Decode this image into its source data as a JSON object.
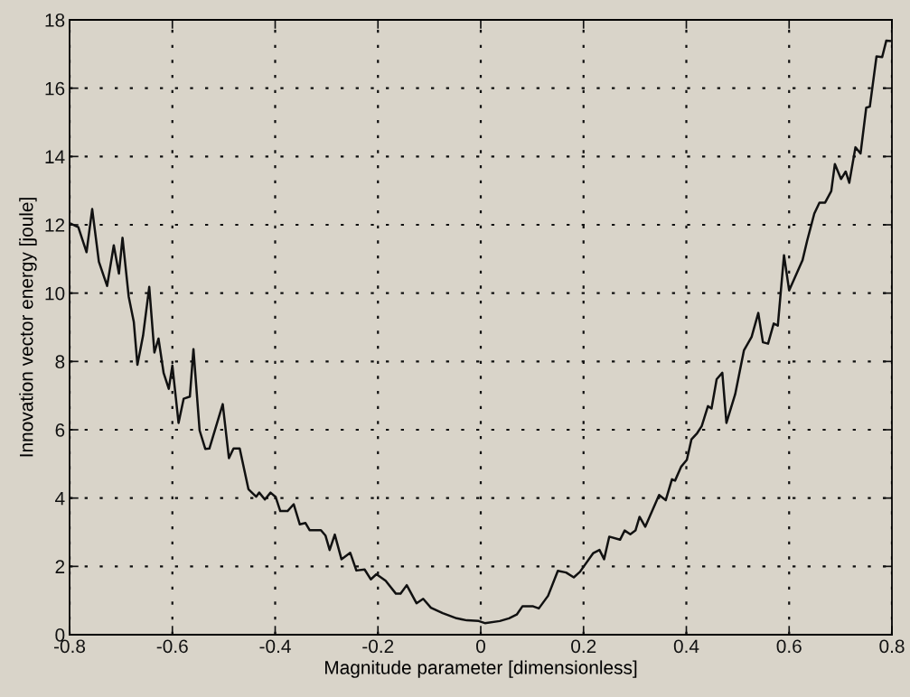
{
  "chart_data": {
    "type": "line",
    "xlabel": "Magnitude parameter [dimensionless]",
    "ylabel": "Innovation vector energy [joule]",
    "xlim": [
      -0.8,
      0.8
    ],
    "xticks": [
      -0.8,
      -0.6,
      -0.4,
      -0.2,
      0,
      0.2,
      0.4,
      0.6,
      0.8
    ],
    "ylim": [
      0,
      18
    ],
    "yticks": [
      0,
      2,
      4,
      6,
      8,
      10,
      12,
      14,
      16,
      18
    ],
    "grid": true,
    "line_style": "solid",
    "marker": "none",
    "series": [
      {
        "color": "#111111",
        "x": [
          -0.8,
          -0.783,
          -0.767,
          -0.756,
          -0.743,
          -0.727,
          -0.714,
          -0.704,
          -0.697,
          -0.685,
          -0.675,
          -0.668,
          -0.657,
          -0.645,
          -0.635,
          -0.627,
          -0.617,
          -0.607,
          -0.6,
          -0.588,
          -0.578,
          -0.566,
          -0.559,
          -0.547,
          -0.536,
          -0.528,
          -0.502,
          -0.49,
          -0.481,
          -0.469,
          -0.452,
          -0.437,
          -0.431,
          -0.42,
          -0.409,
          -0.399,
          -0.39,
          -0.376,
          -0.364,
          -0.352,
          -0.341,
          -0.333,
          -0.311,
          -0.302,
          -0.294,
          -0.284,
          -0.271,
          -0.254,
          -0.242,
          -0.226,
          -0.214,
          -0.203,
          -0.185,
          -0.165,
          -0.156,
          -0.144,
          -0.125,
          -0.112,
          -0.097,
          -0.074,
          -0.047,
          -0.027,
          -0.004,
          0.008,
          0.037,
          0.055,
          0.07,
          0.081,
          0.102,
          0.113,
          0.131,
          0.15,
          0.166,
          0.181,
          0.193,
          0.219,
          0.231,
          0.24,
          0.25,
          0.271,
          0.28,
          0.291,
          0.301,
          0.309,
          0.32,
          0.347,
          0.36,
          0.372,
          0.378,
          0.39,
          0.401,
          0.41,
          0.421,
          0.43,
          0.442,
          0.449,
          0.459,
          0.47,
          0.478,
          0.495,
          0.512,
          0.527,
          0.54,
          0.549,
          0.559,
          0.57,
          0.578,
          0.59,
          0.6,
          0.626,
          0.635,
          0.649,
          0.659,
          0.67,
          0.682,
          0.689,
          0.701,
          0.71,
          0.717,
          0.729,
          0.739,
          0.75,
          0.757,
          0.77,
          0.781,
          0.789,
          0.796
        ],
        "values": [
          12.05,
          11.93,
          11.2,
          12.46,
          10.92,
          10.21,
          11.4,
          10.57,
          11.62,
          9.9,
          9.15,
          7.9,
          8.76,
          10.18,
          8.26,
          8.67,
          7.66,
          7.2,
          7.88,
          6.2,
          6.91,
          6.97,
          8.36,
          5.98,
          5.44,
          5.45,
          6.75,
          5.17,
          5.45,
          5.45,
          4.26,
          4.04,
          4.16,
          3.96,
          4.16,
          4.03,
          3.62,
          3.62,
          3.82,
          3.23,
          3.27,
          3.06,
          3.06,
          2.9,
          2.48,
          2.93,
          2.21,
          2.4,
          1.88,
          1.91,
          1.62,
          1.77,
          1.58,
          1.2,
          1.2,
          1.45,
          0.92,
          1.05,
          0.79,
          0.63,
          0.48,
          0.42,
          0.4,
          0.34,
          0.4,
          0.48,
          0.59,
          0.83,
          0.83,
          0.77,
          1.14,
          1.87,
          1.82,
          1.68,
          1.84,
          2.39,
          2.48,
          2.21,
          2.87,
          2.78,
          3.05,
          2.94,
          3.05,
          3.45,
          3.16,
          4.09,
          3.94,
          4.55,
          4.51,
          4.92,
          5.12,
          5.72,
          5.9,
          6.11,
          6.69,
          6.62,
          7.48,
          7.67,
          6.2,
          7.04,
          8.32,
          8.72,
          9.42,
          8.56,
          8.52,
          9.11,
          9.05,
          11.11,
          10.08,
          10.96,
          11.53,
          12.33,
          12.65,
          12.65,
          12.99,
          13.78,
          13.34,
          13.56,
          13.23,
          14.27,
          14.09,
          15.43,
          15.46,
          16.93,
          16.91,
          17.39,
          17.38
        ]
      }
    ]
  }
}
